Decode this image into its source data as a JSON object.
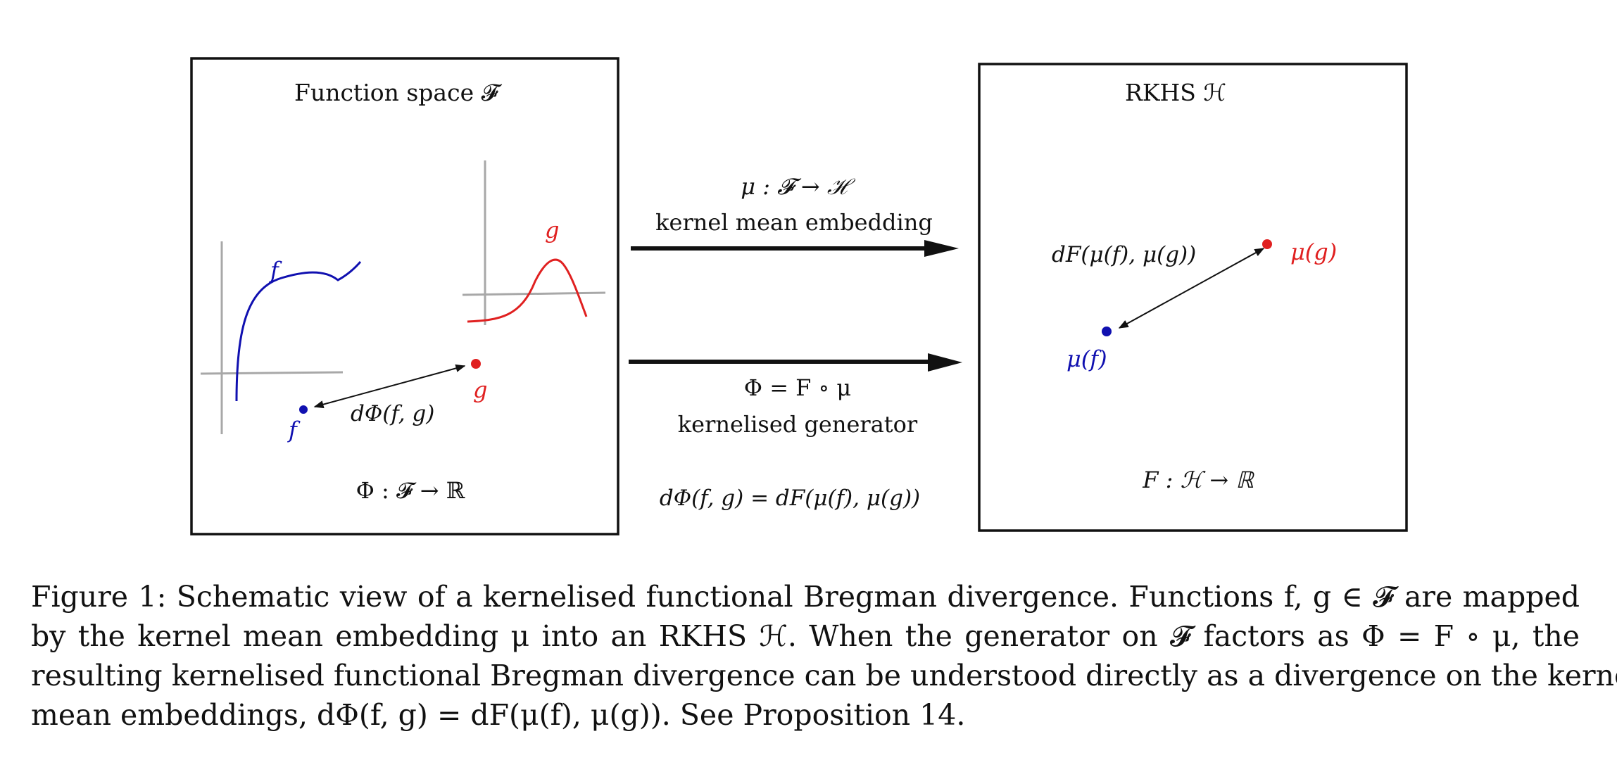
{
  "figure": {
    "left_panel": {
      "title": "Function space 𝓕",
      "curve_f_label": "f",
      "curve_g_label": "g",
      "point_f_label": "f",
      "point_g_label": "g",
      "distance_label": "dΦ(f, g)",
      "generator_label": "Φ : 𝓕 → ℝ"
    },
    "middle": {
      "top_arrow_math": "μ : 𝓕 → ℋ",
      "top_arrow_text": "kernel mean embedding",
      "bottom_arrow_math": "Φ = F ∘ μ",
      "bottom_arrow_text": "kernelised generator",
      "identity": "dΦ(f, g) = dF(μ(f), μ(g))"
    },
    "right_panel": {
      "title": "RKHS ℋ",
      "distance_label": "dF(μ(f), μ(g))",
      "point_g_label": "μ(g)",
      "point_f_label": "μ(f)",
      "generator_label": "F : ℋ → ℝ"
    },
    "colors": {
      "f": "#1010b0",
      "g": "#e02020",
      "axes": "#a8a8a8",
      "ink": "#111111"
    }
  },
  "caption": {
    "lines": [
      "Figure 1: Schematic view of a kernelised functional Bregman divergence. Functions f, g ∈ 𝓕 are mapped",
      "by the kernel mean embedding μ into an RKHS ℋ. When the generator on 𝓕 factors as Φ = F ∘ μ, the",
      "resulting kernelised functional Bregman divergence can be understood directly as a divergence on the kernel",
      "mean embeddings, dΦ(f, g) = dF(μ(f), μ(g)). See Proposition 14."
    ]
  }
}
